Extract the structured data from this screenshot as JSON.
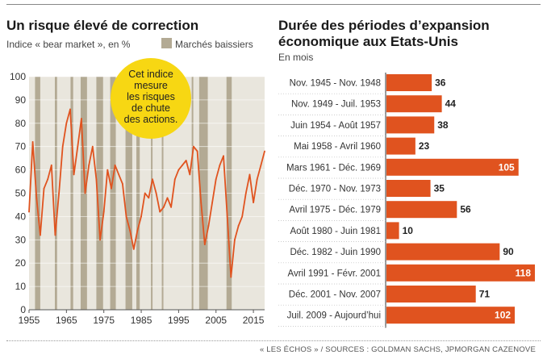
{
  "left_chart": {
    "title": "Un risque élevé de correction",
    "subtitle": "Indice « bear market », en %",
    "legend_label": "Marchés baissiers",
    "callout": [
      "Cet indice",
      "mesure",
      "les risques",
      "de chute",
      "des actions."
    ],
    "colors": {
      "line": "#e0531f",
      "band": "#b3aa94",
      "panel": "#e9e6dd",
      "callout": "#f7d713"
    }
  },
  "right_chart": {
    "title_line1": "Durée des périodes d’expansion",
    "title_line2": "économique aux Etats-Unis",
    "subtitle": "En mois",
    "colors": {
      "bar": "#e0531f"
    }
  },
  "source": "« LES ÉCHOS » / SOURCES : GOLDMAN SACHS, JPMORGAN CAZENOVE",
  "chart_data": [
    {
      "type": "line",
      "title": "Un risque élevé de correction",
      "subtitle": "Indice « bear market », en %",
      "xlim": [
        1955,
        2018
      ],
      "ylim": [
        0,
        100
      ],
      "x_ticks": [
        1955,
        1965,
        1975,
        1985,
        1995,
        2005,
        2015
      ],
      "y_ticks": [
        0,
        10,
        20,
        30,
        40,
        50,
        60,
        70,
        80,
        90,
        100
      ],
      "grid": true,
      "series": [
        {
          "name": "",
          "x": [
            1955,
            1956,
            1957,
            1958,
            1959,
            1960,
            1961,
            1962,
            1963,
            1964,
            1965,
            1966,
            1967,
            1968,
            1969,
            1970,
            1971,
            1972,
            1973,
            1974,
            1975,
            1976,
            1977,
            1978,
            1979,
            1980,
            1981,
            1982,
            1983,
            1984,
            1985,
            1986,
            1987,
            1988,
            1989,
            1990,
            1991,
            1992,
            1993,
            1994,
            1995,
            1996,
            1997,
            1998,
            1999,
            2000,
            2001,
            2002,
            2003,
            2004,
            2005,
            2006,
            2007,
            2008,
            2009,
            2010,
            2011,
            2012,
            2013,
            2014,
            2015,
            2016,
            2017,
            2018
          ],
          "values": [
            42,
            72,
            48,
            32,
            52,
            56,
            62,
            32,
            50,
            70,
            80,
            86,
            58,
            70,
            82,
            50,
            62,
            70,
            56,
            30,
            42,
            60,
            52,
            62,
            58,
            54,
            40,
            34,
            26,
            34,
            40,
            50,
            48,
            56,
            50,
            42,
            44,
            48,
            44,
            56,
            60,
            62,
            64,
            58,
            70,
            68,
            46,
            28,
            36,
            46,
            56,
            62,
            66,
            40,
            14,
            30,
            36,
            40,
            50,
            58,
            46,
            56,
            62,
            68
          ]
        }
      ],
      "bands_years": [
        [
          1956.6,
          1958.0
        ],
        [
          1961.9,
          1962.5
        ],
        [
          1966.1,
          1966.8
        ],
        [
          1968.8,
          1970.5
        ],
        [
          1973.0,
          1974.8
        ],
        [
          1976.7,
          1978.2
        ],
        [
          1980.8,
          1982.6
        ],
        [
          1983.7,
          1984.6
        ],
        [
          1987.6,
          1988.0
        ],
        [
          1990.5,
          1990.8
        ],
        [
          1998.5,
          1998.8
        ],
        [
          2000.5,
          2002.8
        ],
        [
          2007.8,
          2009.2
        ]
      ]
    },
    {
      "type": "bar",
      "title": "Durée des périodes d’expansion économique aux Etats-Unis",
      "subtitle": "En mois",
      "categories": [
        "Nov. 1945 - Nov. 1948",
        "Nov. 1949 - Juil. 1953",
        "Juin 1954 - Août 1957",
        "Mai 1958 - Avril 1960",
        "Mars 1961 - Déc. 1969",
        "Déc. 1970 - Nov. 1973",
        "Avril 1975 - Déc. 1979",
        "Août 1980 - Juin 1981",
        "Déc. 1982 - Juin 1990",
        "Avril 1991 - Févr. 2001",
        "Déc. 2001 - Nov. 2007",
        "Juil. 2009 - Aujourd’hui"
      ],
      "values": [
        36,
        44,
        38,
        23,
        105,
        35,
        56,
        10,
        90,
        118,
        71,
        102
      ],
      "label_inside": [
        false,
        false,
        false,
        false,
        true,
        false,
        false,
        false,
        false,
        true,
        false,
        true
      ]
    }
  ]
}
